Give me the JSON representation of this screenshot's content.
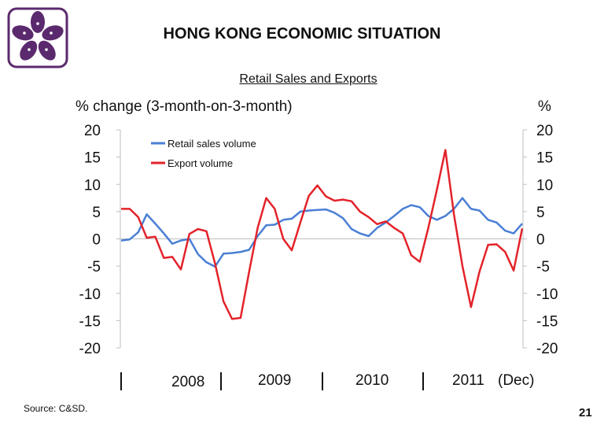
{
  "header": {
    "title": "HONG KONG ECONOMIC SITUATION",
    "subtitle": "Retail Sales and Exports"
  },
  "footer": {
    "source": "Source: C&SD.",
    "page_number": "21"
  },
  "colors": {
    "retail": "#4a7fd4",
    "export": "#e3232a",
    "logo": "#5b2a6e"
  },
  "chart_data": {
    "type": "line",
    "ylabel_left": "% change (3-month-on-3-month)",
    "ylabel_right": "%",
    "ylim": [
      -20,
      20
    ],
    "yticks": [
      20,
      15,
      10,
      5,
      0,
      -5,
      -10,
      -15,
      -20
    ],
    "x_tick_labels": [
      "2008",
      "2009",
      "2010",
      "2011",
      "(Dec)"
    ],
    "legend": {
      "position": "top-left"
    },
    "x": [
      0,
      1,
      2,
      3,
      4,
      5,
      6,
      7,
      8,
      9,
      10,
      11,
      12,
      13,
      14,
      15,
      16,
      17,
      18,
      19,
      20,
      21,
      22,
      23,
      24,
      25,
      26,
      27,
      28,
      29,
      30,
      31,
      32,
      33,
      34,
      35,
      36,
      37,
      38,
      39,
      40,
      41,
      42,
      43,
      44,
      45,
      46,
      47
    ],
    "series": [
      {
        "name": "Retail sales volume",
        "values": [
          -0.3,
          -0.1,
          1.2,
          4.5,
          2.8,
          1.0,
          -0.9,
          -0.3,
          0.0,
          -2.8,
          -4.3,
          -5.1,
          -2.7,
          -2.6,
          -2.4,
          -2.0,
          0.5,
          2.5,
          2.6,
          3.5,
          3.7,
          5.0,
          5.2,
          5.3,
          5.4,
          4.8,
          3.8,
          1.8,
          1.0,
          0.5,
          2.0,
          3.0,
          4.2,
          5.5,
          6.2,
          5.8,
          4.2,
          3.5,
          4.2,
          5.5,
          7.5,
          5.5,
          5.2,
          3.5,
          3.0,
          1.5,
          1.0,
          2.8
        ]
      },
      {
        "name": "Export volume",
        "values": [
          5.5,
          5.5,
          4.0,
          0.2,
          0.4,
          -3.5,
          -3.3,
          -5.6,
          0.9,
          1.8,
          1.4,
          -4.5,
          -11.5,
          -14.7,
          -14.5,
          -6.0,
          2.0,
          7.5,
          5.5,
          0.0,
          -2.1,
          3.0,
          7.9,
          9.8,
          7.8,
          7.0,
          7.2,
          6.9,
          5.0,
          4.0,
          2.7,
          3.2,
          2.0,
          1.0,
          -3.0,
          -4.2,
          2.0,
          9.0,
          16.3,
          4.5,
          -5.0,
          -12.5,
          -6.0,
          -1.1,
          -1.0,
          -2.4,
          -5.8,
          1.9
        ]
      }
    ]
  }
}
